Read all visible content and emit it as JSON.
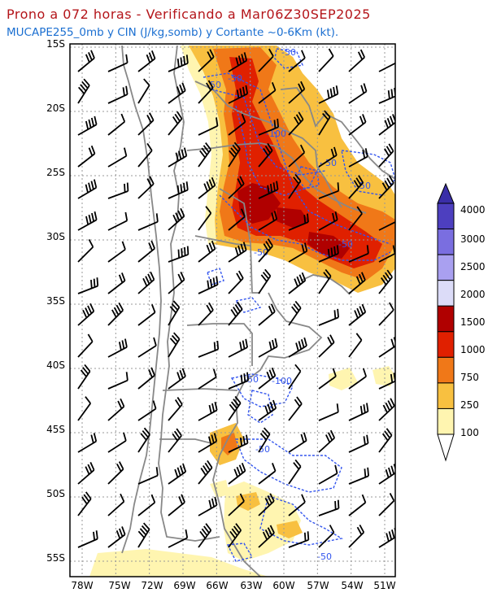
{
  "header": {
    "title": "Prono a 072 horas - Verificando a Mar06Z30SEP2025",
    "subtitle": "MUCAPE255_0mb y CIN (J/kg,somb) y Cortante ~0-6Km (kt)."
  },
  "map": {
    "lat_labels": [
      "15S",
      "20S",
      "25S",
      "30S",
      "35S",
      "40S",
      "45S",
      "50S",
      "55S"
    ],
    "lon_labels": [
      "78W",
      "75W",
      "72W",
      "69W",
      "66W",
      "63W",
      "60W",
      "57W",
      "54W",
      "51W"
    ],
    "lat_values": [
      15,
      20,
      25,
      30,
      35,
      40,
      45,
      50,
      55
    ],
    "lon_values": [
      78,
      75,
      72,
      69,
      66,
      63,
      60,
      57,
      54,
      51
    ],
    "contour_labels": [
      "-50",
      "-50",
      "-50",
      "-100",
      "-50",
      "-50",
      "-50",
      "-50",
      "-50",
      "-100",
      "-50",
      "-50"
    ]
  },
  "colorbar": {
    "labels": [
      "4000",
      "3000",
      "2500",
      "2000",
      "1500",
      "1000",
      "750",
      "250",
      "100"
    ],
    "colors": [
      "#4d3fbf",
      "#7a6ee0",
      "#a9a0f0",
      "#dcdcf8",
      "#b00000",
      "#e02000",
      "#f07818",
      "#f8c040",
      "#fff5b0"
    ]
  },
  "colors": {
    "title": "#b4151a",
    "subtitle": "#1b6fd1",
    "contour": "#3355ee",
    "border": "#888888"
  }
}
